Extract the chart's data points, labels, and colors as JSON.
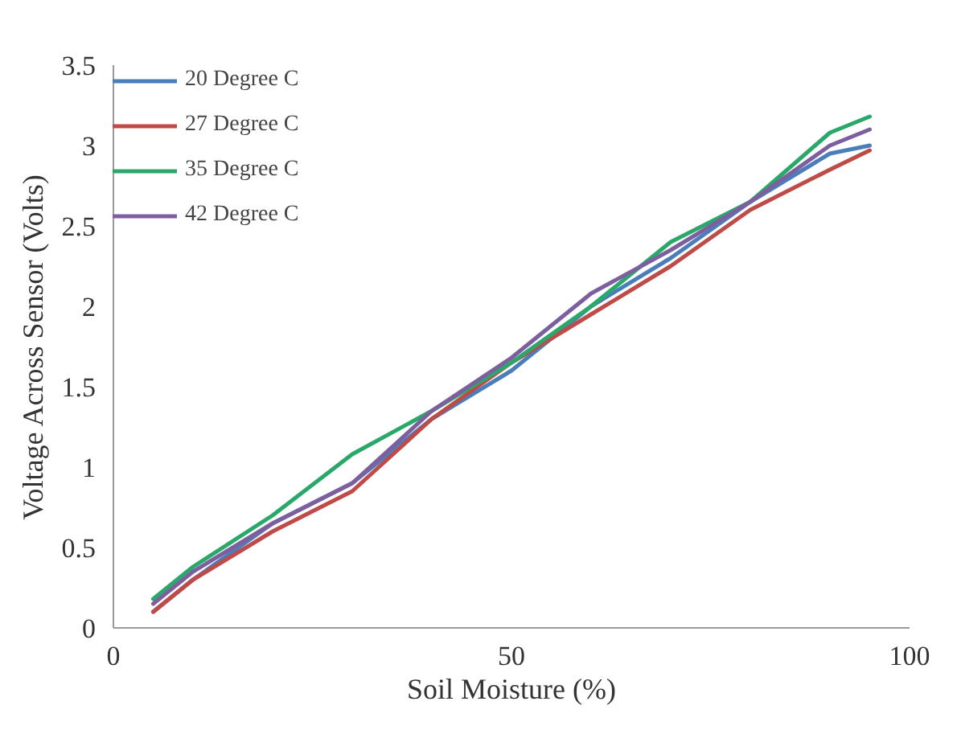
{
  "chart_data": {
    "type": "line",
    "xlabel": "Soil Moisture (%)",
    "ylabel": "Voltage Across Sensor (Volts)",
    "x": [
      5,
      10,
      20,
      30,
      40,
      50,
      60,
      70,
      80,
      90,
      95
    ],
    "xlim": [
      0,
      100
    ],
    "xticks": [
      0,
      50,
      100
    ],
    "ylim": [
      0,
      3.5
    ],
    "yticks": [
      0,
      0.5,
      1,
      1.5,
      2,
      2.5,
      3,
      3.5
    ],
    "grid": false,
    "legend": "top left",
    "line_style": "solid",
    "series": [
      {
        "name": "20 Degree C",
        "color": "#4a7ebb",
        "values": [
          0.1,
          0.3,
          0.65,
          0.9,
          1.3,
          1.6,
          2.0,
          2.3,
          2.65,
          2.95,
          3.0
        ]
      },
      {
        "name": "27 Degree C",
        "color": "#be4b48",
        "values": [
          0.1,
          0.3,
          0.6,
          0.85,
          1.3,
          1.65,
          1.95,
          2.25,
          2.6,
          2.85,
          2.97
        ]
      },
      {
        "name": "35 Degree C",
        "color": "#2aa86a",
        "values": [
          0.18,
          0.38,
          0.7,
          1.08,
          1.35,
          1.65,
          2.0,
          2.4,
          2.65,
          3.08,
          3.18
        ]
      },
      {
        "name": "42 Degree C",
        "color": "#7d5fa0",
        "values": [
          0.15,
          0.35,
          0.65,
          0.9,
          1.35,
          1.68,
          2.08,
          2.35,
          2.65,
          3.0,
          3.1
        ]
      }
    ]
  }
}
